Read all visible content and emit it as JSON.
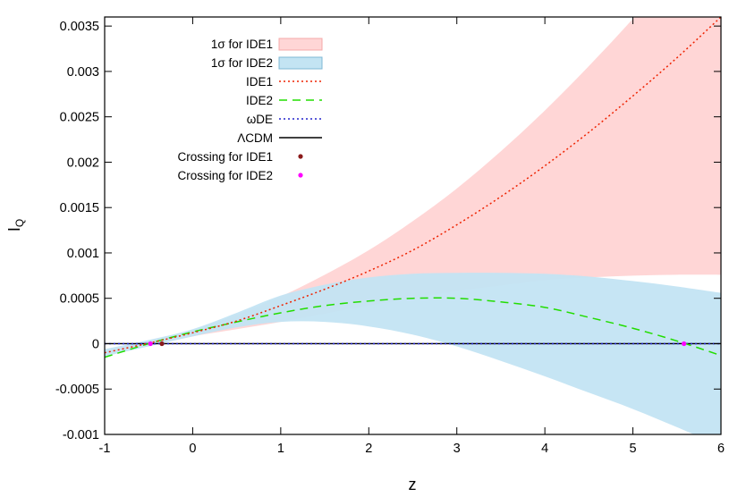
{
  "chart_data": {
    "type": "line",
    "title": "",
    "xlabel": "z",
    "ylabel": "I",
    "ylabel_sub": "Q",
    "xlim": [
      -1,
      6
    ],
    "ylim": [
      -0.001,
      0.0036
    ],
    "grid": false,
    "legend_position": "top-left",
    "x_ticks": [
      -1,
      0,
      1,
      2,
      3,
      4,
      5,
      6
    ],
    "x_tick_labels": [
      "-1",
      "0",
      "1",
      "2",
      "3",
      "4",
      "5",
      "6"
    ],
    "y_ticks": [
      -0.001,
      -0.0005,
      0,
      0.0005,
      0.001,
      0.0015,
      0.002,
      0.0025,
      0.003,
      0.0035
    ],
    "y_tick_labels": [
      "-0.001",
      "-0.0005",
      "0",
      "0.0005",
      "0.001",
      "0.0015",
      "0.002",
      "0.0025",
      "0.003",
      "0.0035"
    ],
    "bands": [
      {
        "name": "1σ for IDE1",
        "color": "#ffd6d6",
        "x": [
          -1,
          -0.5,
          0,
          0.5,
          1,
          1.5,
          2,
          2.5,
          3,
          3.5,
          4,
          4.5,
          5,
          5.5,
          6
        ],
        "lower": [
          -0.00012,
          -2e-05,
          8e-05,
          0.00016,
          0.00024,
          0.00033,
          0.00042,
          0.0005,
          0.00058,
          0.00064,
          0.0007,
          0.00073,
          0.00075,
          0.00076,
          0.00076
        ],
        "upper": [
          -8e-05,
          3e-05,
          0.00015,
          0.00032,
          0.00052,
          0.00076,
          0.00103,
          0.00135,
          0.00171,
          0.00212,
          0.00257,
          0.00306,
          0.00358,
          0.00414,
          0.00474
        ]
      },
      {
        "name": "1σ for IDE2",
        "color": "#c3e4f3",
        "x": [
          -1,
          -0.5,
          0,
          0.5,
          1,
          1.5,
          2,
          2.5,
          3,
          3.5,
          4,
          4.5,
          5,
          5.5,
          6
        ],
        "lower": [
          -0.00014,
          -3e-05,
          8e-05,
          0.00018,
          0.00024,
          0.00024,
          0.00019,
          0.0001,
          -3e-05,
          -0.00019,
          -0.00036,
          -0.00054,
          -0.00072,
          -0.00092,
          -0.00113
        ],
        "upper": [
          -6e-05,
          4e-05,
          0.00016,
          0.00034,
          0.00053,
          0.00065,
          0.00073,
          0.00077,
          0.00078,
          0.00078,
          0.00077,
          0.00074,
          0.00069,
          0.00063,
          0.00056
        ]
      }
    ],
    "series": [
      {
        "name": "IDE1",
        "style": "dotted",
        "color": "#ee2200",
        "x": [
          -1,
          -0.5,
          0,
          0.5,
          1,
          1.5,
          2,
          2.5,
          3,
          3.5,
          4,
          4.5,
          5,
          5.5,
          6
        ],
        "values": [
          -0.0001,
          5e-06,
          0.00012,
          0.00025,
          0.00042,
          0.0006,
          0.0008,
          0.00103,
          0.00131,
          0.00162,
          0.00196,
          0.00233,
          0.00273,
          0.00315,
          0.0036
        ]
      },
      {
        "name": "IDE2",
        "style": "dashed",
        "color": "#22dd00",
        "x": [
          -1,
          -0.5,
          0,
          0.5,
          1,
          1.5,
          2,
          2.5,
          3,
          3.5,
          4,
          4.5,
          5,
          5.5,
          6
        ],
        "values": [
          -0.00015,
          0.0,
          0.00013,
          0.00024,
          0.00034,
          0.00042,
          0.00047,
          0.0005,
          0.0005,
          0.00046,
          0.0004,
          0.00029,
          0.00017,
          3e-05,
          -0.00013
        ]
      },
      {
        "name": "ωDE",
        "style": "dotted",
        "color": "#2222cc",
        "x": [
          -1,
          6
        ],
        "values": [
          0,
          0
        ]
      },
      {
        "name": "ΛCDM",
        "style": "solid",
        "color": "#000000",
        "x": [
          -1,
          6
        ],
        "values": [
          0,
          0
        ]
      }
    ],
    "points": [
      {
        "name": "Crossing for IDE1",
        "color": "#8b1a1a",
        "x": [
          -0.35
        ],
        "y": [
          0
        ]
      },
      {
        "name": "Crossing for IDE2",
        "color": "#ff00ff",
        "x": [
          -0.48,
          5.58
        ],
        "y": [
          0,
          0
        ]
      }
    ],
    "legend": [
      {
        "label": "1σ for IDE1",
        "kind": "band",
        "color": "#ffd6d6",
        "stroke": "#f5a8a8"
      },
      {
        "label": "1σ for IDE2",
        "kind": "band",
        "color": "#c3e4f3",
        "stroke": "#7fb8d6"
      },
      {
        "label": "IDE1",
        "kind": "line",
        "style": "dotted",
        "color": "#ee2200"
      },
      {
        "label": "IDE2",
        "kind": "line",
        "style": "dashed",
        "color": "#22dd00"
      },
      {
        "label": "ωDE",
        "kind": "line",
        "style": "dotted",
        "color": "#2222cc"
      },
      {
        "label": "ΛCDM",
        "kind": "line",
        "style": "solid",
        "color": "#000000"
      },
      {
        "label": "Crossing for IDE1",
        "kind": "point",
        "color": "#8b1a1a"
      },
      {
        "label": "Crossing for IDE2",
        "kind": "point",
        "color": "#ff00ff"
      }
    ]
  }
}
